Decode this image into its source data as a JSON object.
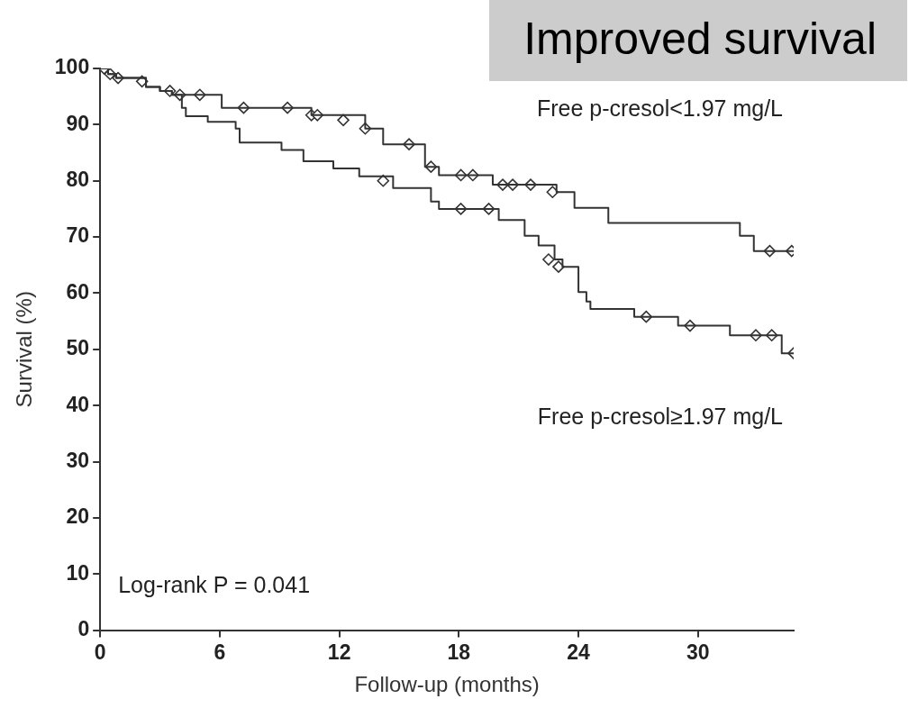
{
  "chart_data": {
    "type": "step",
    "title": "Improved survival",
    "xlabel": "Follow-up (months)",
    "ylabel": "Survival (%)",
    "xlim": [
      0,
      34.8
    ],
    "xticks": [
      0,
      6,
      12,
      18,
      24,
      30
    ],
    "ylim": [
      0,
      100
    ],
    "yticks": [
      0,
      10,
      20,
      30,
      40,
      50,
      60,
      70,
      80,
      90,
      100
    ],
    "grid": false,
    "legend": false,
    "annotations": [
      "Log-rank P = 0.041"
    ],
    "series": [
      {
        "name": "Free p-cresol<1.97 mg/L",
        "color": "#333333",
        "x": [
          0,
          0.4,
          0.8,
          2.3,
          3.0,
          3.6,
          6.1,
          10.6,
          13.3,
          14.2,
          16.3,
          17.0,
          19.7,
          22.9,
          23.8,
          25.5,
          32.1,
          32.8,
          34.8
        ],
        "values": [
          100,
          99,
          98.3,
          96.7,
          96,
          95.3,
          93,
          91.7,
          89.3,
          86.5,
          82.5,
          81,
          79.3,
          78,
          75.2,
          72.5,
          70.2,
          67.5,
          67.5
        ]
      },
      {
        "name": "Free p-cresol≥1.97 mg/L",
        "color": "#333333",
        "x": [
          0,
          0.4,
          0.8,
          2.3,
          3.0,
          3.6,
          4.1,
          4.3,
          5.4,
          6.8,
          7.0,
          9.1,
          10.2,
          11.7,
          13.0,
          14.7,
          16.6,
          17.0,
          20.0,
          21.3,
          22.0,
          22.8,
          23.2,
          24.0,
          24.4,
          24.6,
          26.8,
          29.0,
          31.6,
          34.2,
          34.8
        ],
        "values": [
          100,
          99,
          98.3,
          96.7,
          96,
          95.3,
          93,
          91.5,
          90.5,
          89.3,
          86.8,
          85.5,
          83.5,
          82.2,
          80.8,
          78.7,
          76.3,
          75,
          73,
          70.2,
          68.5,
          66,
          64.7,
          60.2,
          58.5,
          57.2,
          55.8,
          54.2,
          52.5,
          49.3,
          49.3
        ]
      },
      {
        "type": "scatter",
        "marker": "diamond",
        "color": "#333333",
        "x": [
          0.2,
          0.5,
          0.9,
          2.1,
          3.5,
          4.0,
          5.0,
          7.2,
          9.4,
          10.6,
          10.9,
          12.2,
          13.3,
          15.5,
          16.6,
          18.1,
          18.7,
          20.2,
          20.7,
          21.6,
          22.7,
          33.6,
          34.7
        ],
        "values": [
          100,
          99,
          98.3,
          97.7,
          96,
          95.3,
          95.3,
          93,
          93,
          91.7,
          91.7,
          90.8,
          89.3,
          86.5,
          82.5,
          81,
          81,
          79.3,
          79.3,
          79.3,
          78,
          67.5,
          67.5
        ]
      },
      {
        "type": "scatter",
        "marker": "diamond",
        "color": "#333333",
        "x": [
          14.2,
          18.1,
          19.5,
          22.5,
          23.0,
          27.4,
          29.6,
          32.9,
          33.7,
          34.8
        ],
        "values": [
          80,
          75,
          75,
          66,
          64.7,
          55.8,
          54.2,
          52.5,
          52.5,
          49.3
        ]
      }
    ]
  }
}
